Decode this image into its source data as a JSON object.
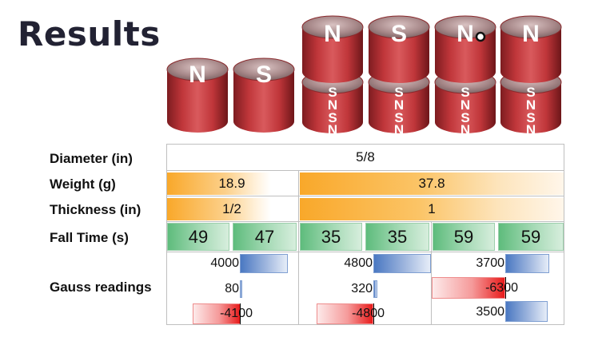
{
  "title": "Results",
  "magnets": [
    {
      "top": "N"
    },
    {
      "top": "S"
    },
    {
      "top": "N",
      "side": [
        "S",
        "N",
        "S",
        "N"
      ]
    },
    {
      "top": "S",
      "side": [
        "S",
        "N",
        "S",
        "N"
      ]
    },
    {
      "top": "N",
      "side": [
        "S",
        "N",
        "S",
        "N"
      ]
    },
    {
      "top": "N",
      "side": [
        "S",
        "N",
        "S",
        "N"
      ]
    }
  ],
  "rows": {
    "diameter": {
      "label": "Diameter (in)",
      "value": "5/8"
    },
    "weight": {
      "label": "Weight (g)",
      "values": [
        "18.9",
        "37.8"
      ]
    },
    "thickness": {
      "label": "Thickness (in)",
      "values": [
        "1/2",
        "1"
      ]
    },
    "fall_time": {
      "label": "Fall Time (s)",
      "values": [
        "49",
        "47",
        "35",
        "35",
        "59",
        "59"
      ]
    },
    "gauss": {
      "label": "Gauss readings",
      "groups": [
        [
          "4000",
          "80",
          "-4100"
        ],
        [
          "4800",
          "320",
          "-4800"
        ],
        [
          "3700",
          "-6300",
          "3500"
        ]
      ]
    }
  },
  "colors": {
    "magnet_red": "#c0363a",
    "orange": "#f9a82a",
    "green": "#5ebc7c",
    "blue": "#4a78c2",
    "red": "#e81b1b"
  }
}
